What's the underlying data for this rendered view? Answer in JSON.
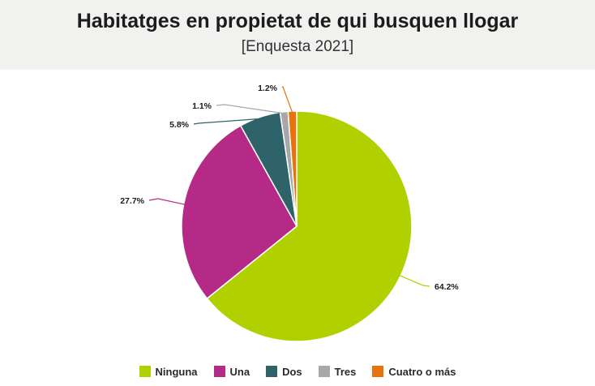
{
  "chart_data": {
    "type": "pie",
    "title": "Habitatges en propietat de qui busquen llogar",
    "subtitle": "[Enquesta 2021]",
    "slices": [
      {
        "label": "Ninguna",
        "value": 64.2,
        "value_label": "64.2%",
        "color": "#b0d000"
      },
      {
        "label": "Una",
        "value": 27.7,
        "value_label": "27.7%",
        "color": "#b52a86"
      },
      {
        "label": "Dos",
        "value": 5.8,
        "value_label": "5.8%",
        "color": "#2e6469"
      },
      {
        "label": "Tres",
        "value": 1.1,
        "value_label": "1.1%",
        "color": "#a7a7a7"
      },
      {
        "label": "Cuatro o más",
        "value": 1.2,
        "value_label": "1.2%",
        "color": "#e8720c"
      }
    ],
    "legend_position": "bottom"
  }
}
